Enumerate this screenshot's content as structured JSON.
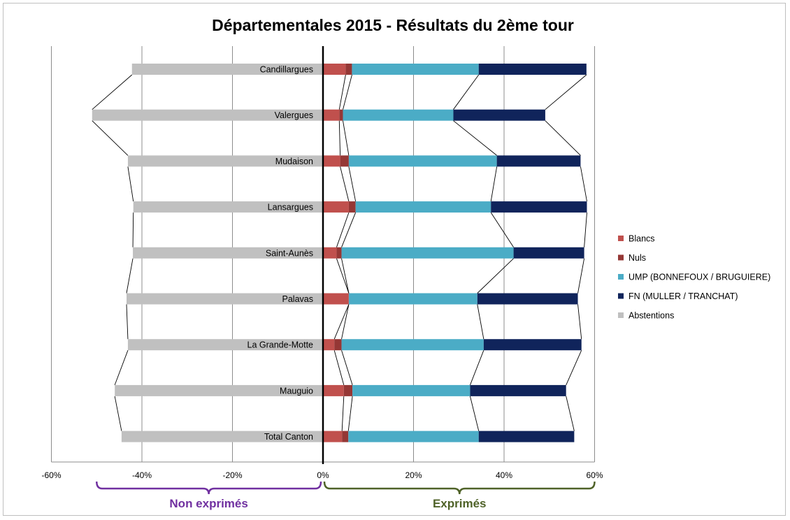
{
  "chart_data": {
    "type": "bar",
    "orientation": "horizontal",
    "stacked": true,
    "title": "Départementales 2015 - Résultats du 2ème tour",
    "categories": [
      "Candillargues",
      "Valergues",
      "Mudaison",
      "Lansargues",
      "Saint-Aunès",
      "Palavas",
      "La Grande-Motte",
      "Mauguio",
      "Total Canton"
    ],
    "series": [
      {
        "name": "Blancs",
        "color": "#c0504d",
        "values": [
          5.0,
          3.6,
          3.8,
          5.7,
          3.0,
          5.7,
          2.5,
          4.6,
          4.2
        ]
      },
      {
        "name": "Nuls",
        "color": "#953735",
        "values": [
          1.4,
          0.8,
          1.9,
          1.5,
          1.1,
          0.0,
          1.6,
          1.9,
          1.4
        ]
      },
      {
        "name": "UMP (BONNEFOUX / BRUGUIERE)",
        "color": "#4bacc6",
        "values": [
          28.0,
          24.4,
          32.7,
          29.9,
          38.0,
          28.4,
          31.4,
          26.0,
          28.8
        ]
      },
      {
        "name": "FN (MULLER / TRANCHAT)",
        "color": "#10245b",
        "values": [
          23.8,
          20.3,
          18.5,
          21.2,
          15.6,
          22.2,
          21.6,
          21.2,
          21.1
        ]
      },
      {
        "name": "Abstentions",
        "color": "#c0c0c0",
        "values": [
          -42.2,
          -51.0,
          -43.1,
          -41.9,
          -42.0,
          -43.4,
          -43.1,
          -46.0,
          -44.5
        ]
      }
    ],
    "xlim": [
      -60,
      60
    ],
    "xticks": [
      "-60%",
      "-40%",
      "-20%",
      "0%",
      "20%",
      "40%",
      "60%"
    ],
    "grid": true,
    "legend_position": "right",
    "annotations": [
      {
        "text": "Non exprimés",
        "color": "#7030a0",
        "from": -50,
        "to": 0
      },
      {
        "text": "Exprimés",
        "color": "#4f6228",
        "from": 0,
        "to": 60
      }
    ]
  }
}
